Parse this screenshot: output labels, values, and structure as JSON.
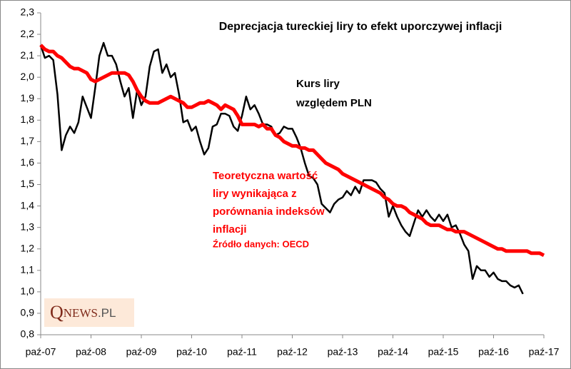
{
  "chart_data": {
    "type": "line",
    "title": "Deprecjacja tureckiej liry to efekt uporczywej inflacji",
    "categories": [
      "paź-07",
      null,
      null,
      null,
      null,
      null,
      null,
      null,
      null,
      null,
      null,
      null,
      "paź-08",
      null,
      null,
      null,
      null,
      null,
      null,
      null,
      null,
      null,
      null,
      null,
      "paź-09",
      null,
      null,
      null,
      null,
      null,
      null,
      null,
      null,
      null,
      null,
      null,
      "paź-10",
      null,
      null,
      null,
      null,
      null,
      null,
      null,
      null,
      null,
      null,
      null,
      "paź-11",
      null,
      null,
      null,
      null,
      null,
      null,
      null,
      null,
      null,
      null,
      null,
      "paź-12",
      null,
      null,
      null,
      null,
      null,
      null,
      null,
      null,
      null,
      null,
      null,
      "paź-13",
      null,
      null,
      null,
      null,
      null,
      null,
      null,
      null,
      null,
      null,
      null,
      "paź-14",
      null,
      null,
      null,
      null,
      null,
      null,
      null,
      null,
      null,
      null,
      null,
      "paź-15",
      null,
      null,
      null,
      null,
      null,
      null,
      null,
      null,
      null,
      null,
      null,
      "paź-16",
      null,
      null,
      null,
      null,
      null,
      null,
      null,
      null,
      null,
      null,
      null,
      "paź-17"
    ],
    "series": [
      {
        "label_lines": [
          "Kurs liry",
          "względem PLN"
        ],
        "color": "#000000",
        "width": 2.5,
        "values": [
          2.15,
          2.09,
          2.1,
          2.08,
          1.92,
          1.66,
          1.73,
          1.77,
          1.74,
          1.79,
          1.91,
          1.86,
          1.81,
          1.95,
          2.1,
          2.16,
          2.1,
          2.1,
          2.06,
          1.98,
          1.91,
          1.95,
          1.81,
          1.94,
          1.87,
          1.91,
          2.05,
          2.12,
          2.13,
          2.02,
          2.06,
          2.0,
          2.02,
          1.92,
          1.79,
          1.8,
          1.75,
          1.77,
          1.7,
          1.64,
          1.67,
          1.77,
          1.78,
          1.83,
          1.83,
          1.82,
          1.77,
          1.75,
          1.82,
          1.91,
          1.85,
          1.87,
          1.83,
          1.78,
          1.78,
          1.77,
          1.73,
          1.74,
          1.77,
          1.76,
          1.76,
          1.72,
          1.67,
          1.6,
          1.54,
          1.53,
          1.5,
          1.41,
          1.39,
          1.37,
          1.41,
          1.43,
          1.44,
          1.47,
          1.45,
          1.49,
          1.46,
          1.52,
          1.52,
          1.52,
          1.51,
          1.48,
          1.46,
          1.35,
          1.4,
          1.35,
          1.31,
          1.28,
          1.26,
          1.32,
          1.38,
          1.35,
          1.38,
          1.35,
          1.33,
          1.36,
          1.33,
          1.36,
          1.3,
          1.31,
          1.27,
          1.22,
          1.19,
          1.06,
          1.12,
          1.1,
          1.1,
          1.07,
          1.09,
          1.06,
          1.05,
          1.05,
          1.03,
          1.02,
          1.03,
          0.99,
          null,
          null,
          null,
          null,
          null
        ]
      },
      {
        "label_lines": [
          "Teoretyczna wartość",
          "liry wynikająca z",
          "porównania indeksów",
          "inflacji"
        ],
        "color": "#ff0000",
        "width": 5,
        "values": [
          2.15,
          2.13,
          2.12,
          2.12,
          2.1,
          2.09,
          2.07,
          2.05,
          2.04,
          2.04,
          2.03,
          2.02,
          1.99,
          1.98,
          1.99,
          2.0,
          2.01,
          2.02,
          2.02,
          2.02,
          2.02,
          2.01,
          1.98,
          1.94,
          1.91,
          1.89,
          1.88,
          1.88,
          1.88,
          1.89,
          1.9,
          1.91,
          1.9,
          1.89,
          1.88,
          1.86,
          1.86,
          1.87,
          1.88,
          1.88,
          1.89,
          1.88,
          1.87,
          1.85,
          1.87,
          1.86,
          1.85,
          1.82,
          1.78,
          1.78,
          1.78,
          1.78,
          1.77,
          1.78,
          1.76,
          1.76,
          1.73,
          1.72,
          1.7,
          1.69,
          1.68,
          1.68,
          1.67,
          1.67,
          1.66,
          1.66,
          1.64,
          1.62,
          1.6,
          1.59,
          1.58,
          1.57,
          1.55,
          1.54,
          1.53,
          1.52,
          1.51,
          1.5,
          1.49,
          1.48,
          1.47,
          1.46,
          1.44,
          1.43,
          1.41,
          1.4,
          1.4,
          1.39,
          1.37,
          1.36,
          1.35,
          1.34,
          1.32,
          1.31,
          1.31,
          1.31,
          1.3,
          1.29,
          1.29,
          1.28,
          1.28,
          1.28,
          1.27,
          1.26,
          1.25,
          1.24,
          1.23,
          1.22,
          1.21,
          1.2,
          1.2,
          1.19,
          1.19,
          1.19,
          1.19,
          1.19,
          1.19,
          1.18,
          1.18,
          1.18,
          1.17
        ]
      }
    ],
    "source": "Źródło danych: OECD",
    "logo": {
      "initial": "Q",
      "word": "NEWS",
      "suffix": ".PL"
    },
    "ylim": [
      0.8,
      2.3
    ],
    "yticks": [
      {
        "value": 0.8,
        "label": "0,8"
      },
      {
        "value": 0.9,
        "label": "0,9"
      },
      {
        "value": 1.0,
        "label": "1,0"
      },
      {
        "value": 1.1,
        "label": "1,1"
      },
      {
        "value": 1.2,
        "label": "1,2"
      },
      {
        "value": 1.3,
        "label": "1,3"
      },
      {
        "value": 1.4,
        "label": "1,4"
      },
      {
        "value": 1.5,
        "label": "1,5"
      },
      {
        "value": 1.6,
        "label": "1,6"
      },
      {
        "value": 1.7,
        "label": "1,7"
      },
      {
        "value": 1.8,
        "label": "1,8"
      },
      {
        "value": 1.9,
        "label": "1,9"
      },
      {
        "value": 2.0,
        "label": "2,0"
      },
      {
        "value": 2.1,
        "label": "2,1"
      },
      {
        "value": 2.2,
        "label": "2,2"
      },
      {
        "value": 2.3,
        "label": "2,3"
      }
    ],
    "grid": false
  }
}
